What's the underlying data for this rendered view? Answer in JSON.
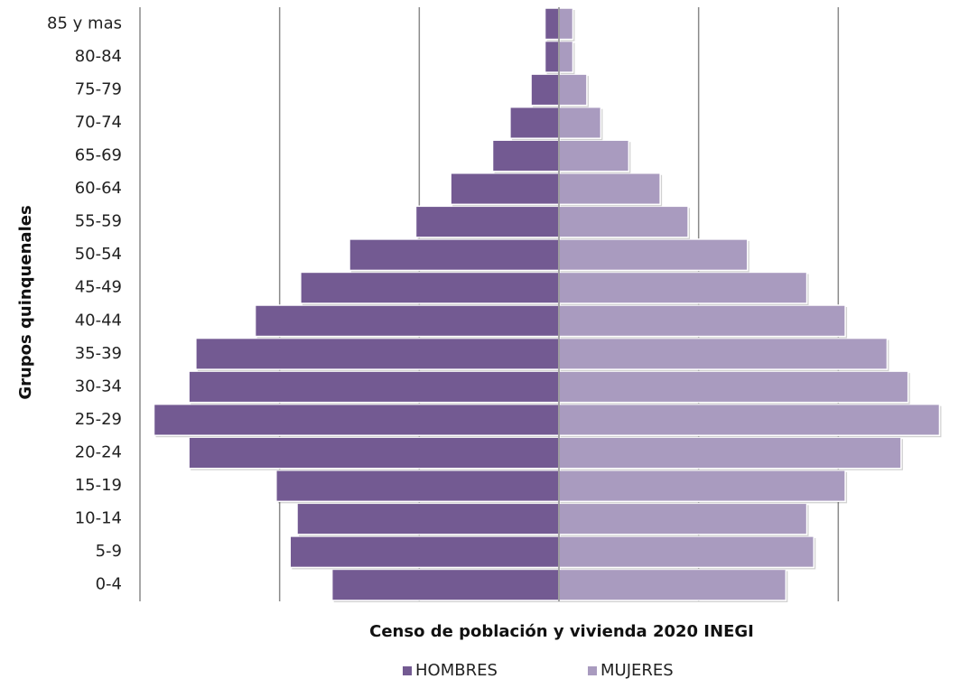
{
  "chart_data": {
    "type": "bar",
    "orientation": "horizontal",
    "layout": "population-pyramid",
    "categories": [
      "0-4",
      "5-9",
      "10-14",
      "15-19",
      "20-24",
      "25-29",
      "30-34",
      "35-39",
      "40-44",
      "45-49",
      "50-54",
      "55-59",
      "60-64",
      "65-69",
      "70-74",
      "75-79",
      "80-84",
      "85 y mas"
    ],
    "series": [
      {
        "name": "HOMBRES",
        "color": "#735a92",
        "side": "left",
        "values": [
          32.5,
          38.5,
          37.5,
          40.5,
          53,
          58,
          53,
          52,
          43.5,
          37,
          30,
          20.5,
          15.5,
          9.5,
          7,
          4,
          2,
          2
        ]
      },
      {
        "name": "MUJERES",
        "color": "#a99bbf",
        "side": "right",
        "values": [
          32.5,
          36.5,
          35.5,
          41,
          49,
          54.5,
          50,
          47,
          41,
          35.5,
          27,
          18.5,
          14.5,
          10,
          6,
          4,
          2,
          2
        ]
      }
    ],
    "xlim": [
      -60,
      60
    ],
    "ylabel": "Grupos quinquenales",
    "xlabel": "Censo de  población y vivienda  2020 INEGI",
    "grid": true,
    "legend": "bottom-center",
    "colors": {
      "gridline": "#8a8a8a",
      "axis": "#8a8a8a",
      "bar_outline": "#ffffff"
    }
  }
}
